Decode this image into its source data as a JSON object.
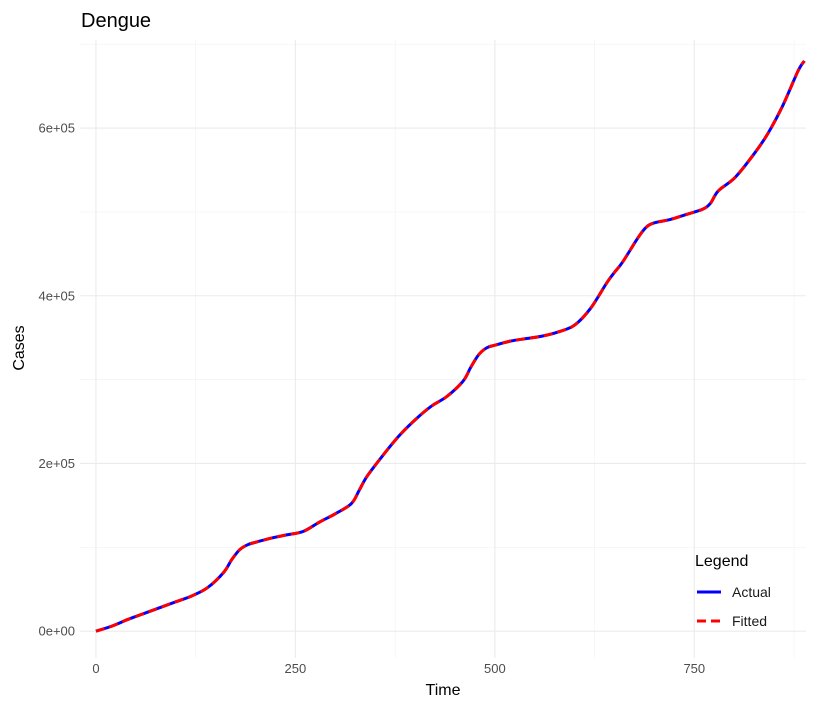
{
  "chart_data": {
    "type": "line",
    "title": "Dengue",
    "xlabel": "Time",
    "ylabel": "Cases",
    "xlim": [
      -20,
      890
    ],
    "ylim": [
      -32000,
      705000
    ],
    "x_ticks": [
      0,
      250,
      500,
      750
    ],
    "x_tick_labels": [
      "0",
      "250",
      "500",
      "750"
    ],
    "y_ticks": [
      0,
      200000,
      400000,
      600000
    ],
    "y_tick_labels": [
      "0e+00",
      "2e+05",
      "4e+05",
      "6e+05"
    ],
    "grid": true,
    "legend": {
      "title": "Legend",
      "position": "bottom-right",
      "entries": [
        {
          "label": "Actual",
          "color": "#0000FF",
          "style": "solid"
        },
        {
          "label": "Fitted",
          "color": "#FF0000",
          "style": "dashed"
        }
      ]
    },
    "x": [
      0,
      20,
      40,
      60,
      80,
      100,
      120,
      140,
      160,
      170,
      180,
      190,
      200,
      220,
      240,
      260,
      280,
      300,
      320,
      330,
      340,
      360,
      380,
      400,
      420,
      440,
      460,
      470,
      480,
      490,
      500,
      520,
      540,
      560,
      580,
      600,
      620,
      640,
      650,
      660,
      680,
      690,
      700,
      720,
      740,
      760,
      770,
      780,
      800,
      820,
      840,
      860,
      880,
      888
    ],
    "series": [
      {
        "name": "Actual",
        "color": "#0000FF",
        "style": "solid",
        "values": [
          0,
          6000,
          14000,
          21000,
          28000,
          35000,
          42000,
          52000,
          70000,
          85000,
          97000,
          103000,
          106000,
          111000,
          115000,
          119000,
          130000,
          140000,
          152000,
          168000,
          185000,
          210000,
          233000,
          252000,
          268000,
          280000,
          298000,
          315000,
          330000,
          338000,
          341000,
          346000,
          349000,
          352000,
          357000,
          365000,
          385000,
          415000,
          428000,
          440000,
          470000,
          482000,
          487000,
          491000,
          497000,
          503000,
          510000,
          525000,
          540000,
          563000,
          590000,
          625000,
          668000,
          680000
        ]
      },
      {
        "name": "Fitted",
        "color": "#FF0000",
        "style": "dashed",
        "values": [
          0,
          6000,
          14000,
          21000,
          28000,
          35000,
          42000,
          52000,
          70000,
          85000,
          97000,
          103000,
          106000,
          111000,
          115000,
          119000,
          130000,
          140000,
          152000,
          168000,
          185000,
          210000,
          233000,
          252000,
          268000,
          280000,
          298000,
          315000,
          330000,
          338000,
          341000,
          346000,
          349000,
          352000,
          357000,
          365000,
          385000,
          415000,
          428000,
          440000,
          470000,
          482000,
          487000,
          491000,
          497000,
          503000,
          510000,
          525000,
          540000,
          563000,
          590000,
          625000,
          668000,
          680000
        ]
      }
    ]
  }
}
